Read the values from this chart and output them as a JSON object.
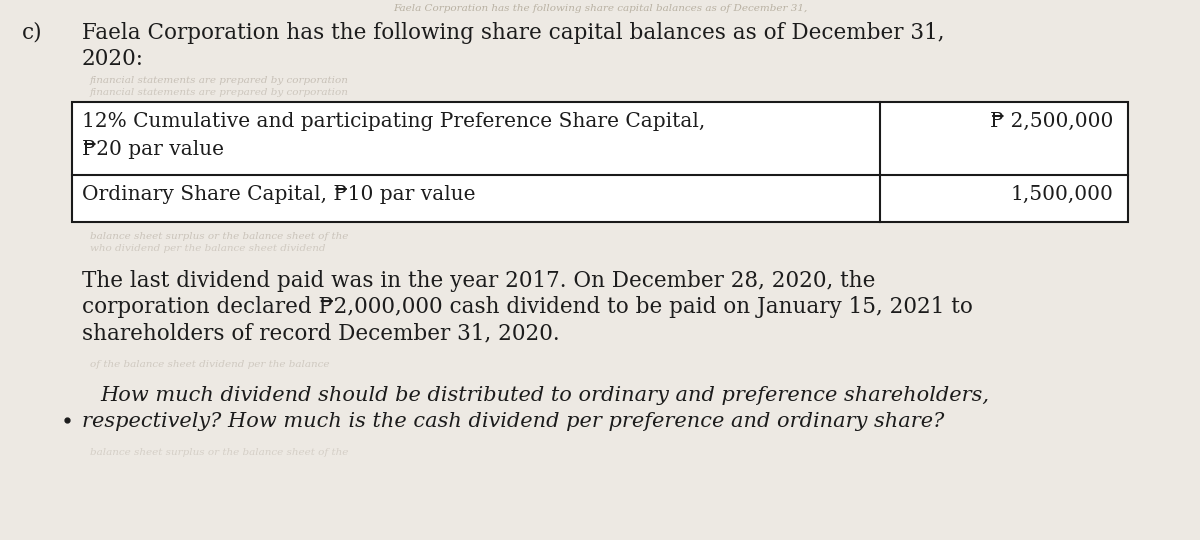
{
  "background_color": "#ede9e3",
  "label_c": "c)",
  "title_line1": "Faela Corporation has the following share capital balances as of December 31,",
  "title_line2": "2020:",
  "row1_col1_line1": "12% Cumulative and participating Preference Share Capital,",
  "row1_col1_line2": "₱20 par value",
  "row1_col2": "₱ 2,500,000",
  "row2_col1": "Ordinary Share Capital, ₱10 par value",
  "row2_col2": "1,500,000",
  "paragraph1_line1": "The last dividend paid was in the year 2017. On December 28, 2020, the",
  "paragraph1_line2": "corporation declared ₱2,000,000 cash dividend to be paid on January 15, 2021 to",
  "paragraph1_line3": "shareholders of record December 31, 2020.",
  "paragraph2_line1": "How much dividend should be distributed to ordinary and preference shareholders,",
  "paragraph2_line2": "respectively? How much is the cash dividend per preference and ordinary share?",
  "top_wm": "Faela Corporation has the following share capital balances as of December 31,",
  "mid_wm1": "financial statements are prepared by corporation",
  "mid_wm2": "financial statements are prepared by corporation",
  "bot_wm1": "balance sheet surplus or the balance sheet of the",
  "bot_wm2": "who dividend per the balance sheet dividend",
  "para2_wm": "of the balance sheet dividend per the balance",
  "font_size_main": 15.5,
  "font_size_table": 14.5,
  "font_size_italic": 15.0,
  "text_color": "#1c1c1c",
  "table_border_color": "#1a1a1a"
}
